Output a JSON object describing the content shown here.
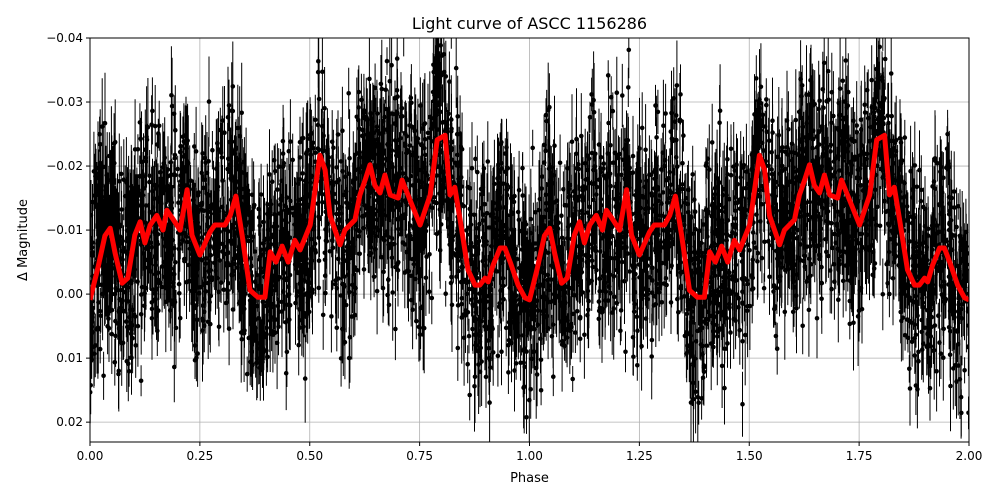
{
  "chart_data": {
    "type": "scatter",
    "title": "Light curve of ASCC 1156286",
    "xlabel": "Phase",
    "ylabel": "Δ Magnitude",
    "xlim": [
      0,
      2
    ],
    "ylim": [
      0.0231,
      -0.04
    ],
    "y_inverted": true,
    "grid": true,
    "xticks": [
      "0.00",
      "0.25",
      "0.50",
      "0.75",
      "1.00",
      "1.25",
      "1.50",
      "1.75",
      "2.00"
    ],
    "yticks": [
      "−0.04",
      "−0.03",
      "−0.02",
      "−0.01",
      "0.00",
      "0.01",
      "0.02"
    ],
    "colors": {
      "observations": "#000000",
      "model": "#ff0000",
      "grid": "#b0b0b0"
    },
    "series": [
      {
        "role": "observations",
        "style": "black points with error bars",
        "scatter_mag": 0.012
      },
      {
        "role": "binned-model",
        "style": "thick red line",
        "x": [
          0.0,
          0.018,
          0.034,
          0.046,
          0.057,
          0.073,
          0.086,
          0.102,
          0.114,
          0.125,
          0.137,
          0.152,
          0.166,
          0.175,
          0.187,
          0.205,
          0.221,
          0.232,
          0.25,
          0.273,
          0.284,
          0.307,
          0.319,
          0.332,
          0.346,
          0.364,
          0.382,
          0.398,
          0.41,
          0.423,
          0.437,
          0.451,
          0.466,
          0.478,
          0.501,
          0.523,
          0.535,
          0.546,
          0.569,
          0.58,
          0.603,
          0.614,
          0.626,
          0.637,
          0.648,
          0.66,
          0.671,
          0.683,
          0.701,
          0.71,
          0.728,
          0.751,
          0.774,
          0.79,
          0.808,
          0.819,
          0.83,
          0.842,
          0.86,
          0.876,
          0.887,
          0.899,
          0.906,
          0.917,
          0.933,
          0.944,
          0.956,
          0.974,
          0.99,
          1.0,
          1.018,
          1.034,
          1.046,
          1.057,
          1.073,
          1.086,
          1.102,
          1.114,
          1.125,
          1.137,
          1.152,
          1.166,
          1.175,
          1.187,
          1.205,
          1.221,
          1.232,
          1.25,
          1.273,
          1.284,
          1.307,
          1.319,
          1.332,
          1.346,
          1.364,
          1.382,
          1.398,
          1.41,
          1.423,
          1.437,
          1.451,
          1.466,
          1.478,
          1.501,
          1.523,
          1.535,
          1.546,
          1.569,
          1.58,
          1.603,
          1.614,
          1.626,
          1.637,
          1.648,
          1.66,
          1.671,
          1.683,
          1.701,
          1.71,
          1.728,
          1.751,
          1.774,
          1.79,
          1.808,
          1.819,
          1.83,
          1.842,
          1.86,
          1.876,
          1.887,
          1.899,
          1.906,
          1.917,
          1.933,
          1.944,
          1.956,
          1.974,
          1.99,
          2.0
        ],
        "y": [
          0.0009,
          -0.0041,
          -0.0091,
          -0.0103,
          -0.0064,
          -0.0017,
          -0.0025,
          -0.0092,
          -0.0113,
          -0.008,
          -0.0108,
          -0.0123,
          -0.01,
          -0.0131,
          -0.0119,
          -0.01,
          -0.0163,
          -0.0092,
          -0.0061,
          -0.0097,
          -0.0108,
          -0.0108,
          -0.0123,
          -0.0153,
          -0.0092,
          -0.0006,
          0.0005,
          0.0005,
          -0.0066,
          -0.005,
          -0.0075,
          -0.005,
          -0.0084,
          -0.0069,
          -0.0108,
          -0.0217,
          -0.0194,
          -0.0123,
          -0.0077,
          -0.01,
          -0.0116,
          -0.0155,
          -0.0178,
          -0.0202,
          -0.017,
          -0.0158,
          -0.0186,
          -0.0155,
          -0.015,
          -0.0178,
          -0.0147,
          -0.0108,
          -0.0155,
          -0.0241,
          -0.0248,
          -0.0155,
          -0.0167,
          -0.0116,
          -0.0038,
          -0.0014,
          -0.0014,
          -0.0025,
          -0.0019,
          -0.0045,
          -0.0072,
          -0.0072,
          -0.005,
          -0.0014,
          0.0006,
          0.0009,
          -0.0041,
          -0.0091,
          -0.0103,
          -0.0064,
          -0.0017,
          -0.0025,
          -0.0092,
          -0.0113,
          -0.008,
          -0.0108,
          -0.0123,
          -0.01,
          -0.0131,
          -0.0119,
          -0.01,
          -0.0163,
          -0.0092,
          -0.0061,
          -0.0097,
          -0.0108,
          -0.0108,
          -0.0123,
          -0.0153,
          -0.0092,
          -0.0006,
          0.0005,
          0.0005,
          -0.0066,
          -0.005,
          -0.0075,
          -0.005,
          -0.0084,
          -0.0069,
          -0.0108,
          -0.0217,
          -0.0194,
          -0.0123,
          -0.0077,
          -0.01,
          -0.0116,
          -0.0155,
          -0.0178,
          -0.0202,
          -0.017,
          -0.0158,
          -0.0186,
          -0.0155,
          -0.015,
          -0.0178,
          -0.0147,
          -0.0108,
          -0.0155,
          -0.0241,
          -0.0248,
          -0.0155,
          -0.0167,
          -0.0116,
          -0.0038,
          -0.0014,
          -0.0014,
          -0.0025,
          -0.0019,
          -0.0045,
          -0.0072,
          -0.0072,
          -0.005,
          -0.0014,
          0.0006,
          0.0009
        ]
      }
    ]
  }
}
